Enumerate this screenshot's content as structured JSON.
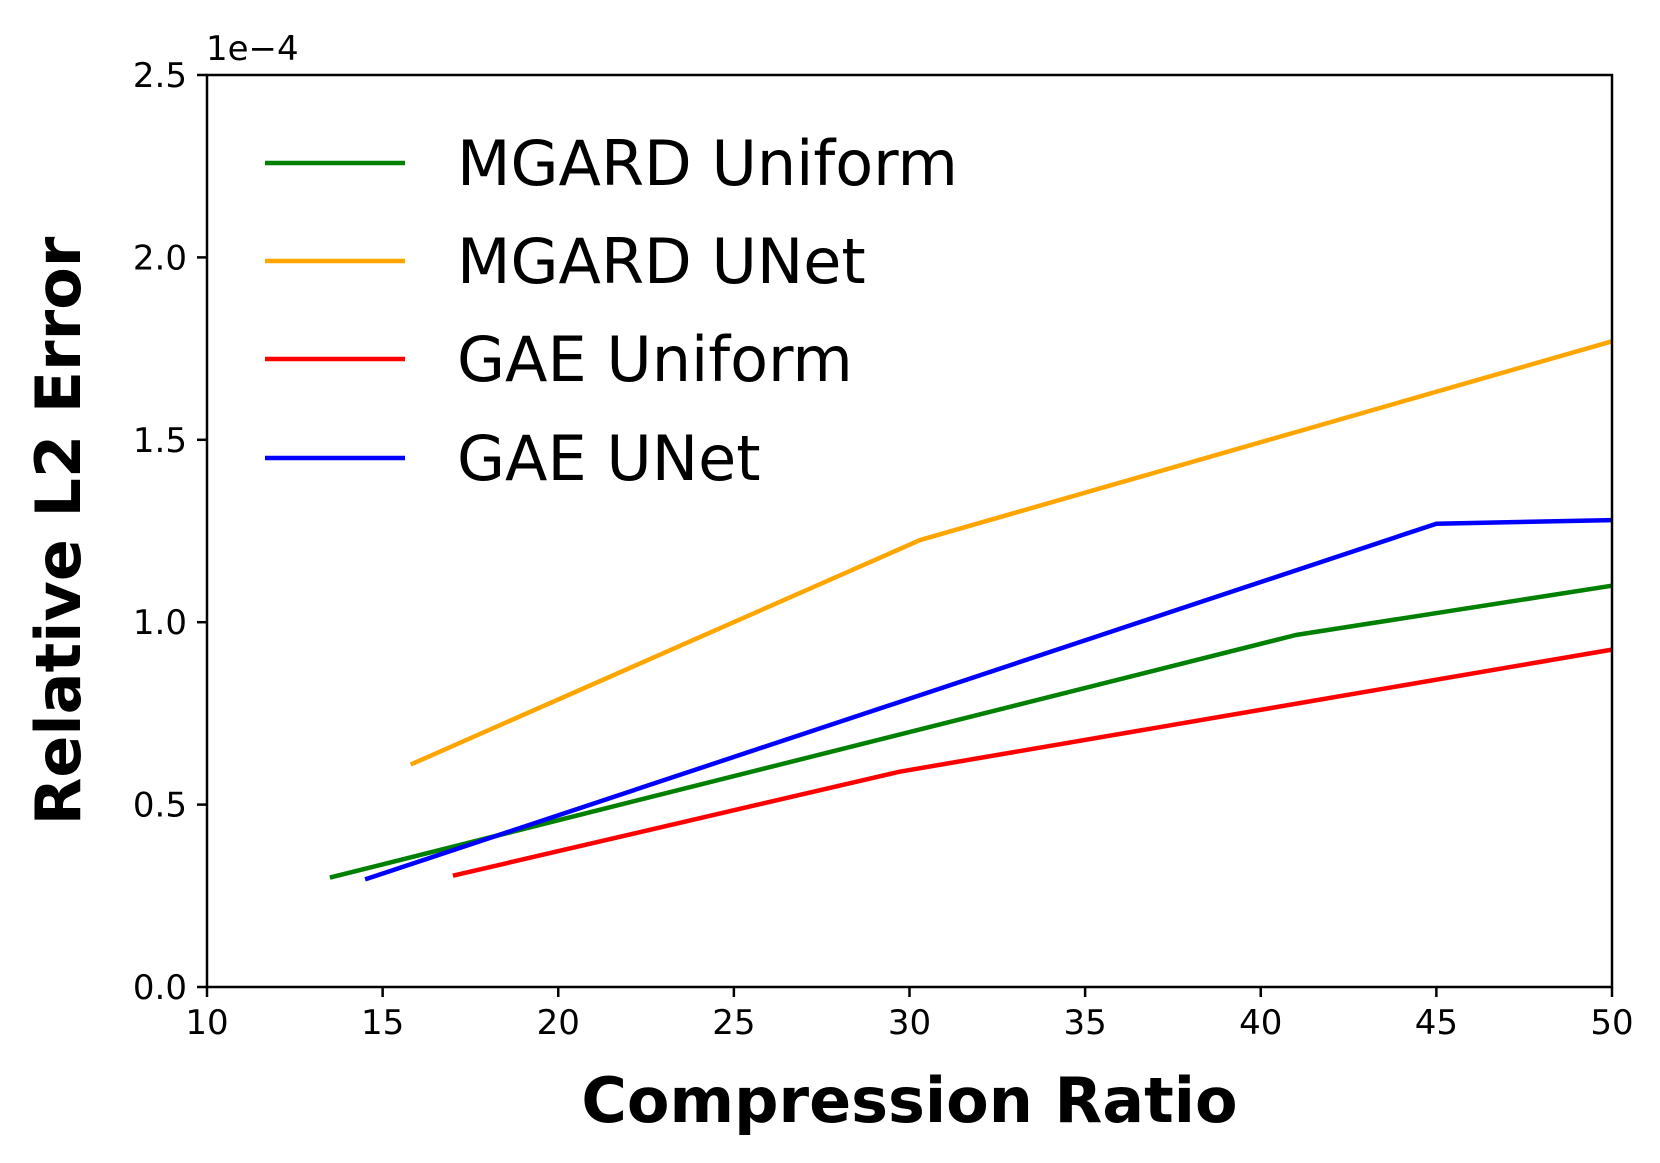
{
  "chart_data": {
    "type": "line",
    "title": "",
    "xlabel": "Compression Ratio",
    "ylabel": "Relative L2 Error",
    "xlim": [
      10,
      50
    ],
    "ylim": [
      0,
      2.5
    ],
    "y_offset_label": "1e−4",
    "xticks": [
      10,
      15,
      20,
      25,
      30,
      35,
      40,
      45,
      50
    ],
    "yticks": [
      0.0,
      0.5,
      1.0,
      1.5,
      2.0,
      2.5
    ],
    "xtick_labels": [
      "10",
      "15",
      "20",
      "25",
      "30",
      "35",
      "40",
      "45",
      "50"
    ],
    "ytick_labels": [
      "0.0",
      "0.5",
      "1.0",
      "1.5",
      "2.0",
      "2.5"
    ],
    "grid": false,
    "legend_position": "upper-left",
    "series": [
      {
        "name": "MGARD Uniform",
        "color": "#008000",
        "x": [
          13.5,
          41.0,
          50.0
        ],
        "y": [
          0.3,
          0.965,
          1.1
        ]
      },
      {
        "name": "MGARD UNet",
        "color": "#ffa500",
        "x": [
          15.8,
          30.3,
          50.0
        ],
        "y": [
          0.61,
          1.225,
          1.77
        ]
      },
      {
        "name": "GAE Uniform",
        "color": "#ff0000",
        "x": [
          17.0,
          29.7,
          50.0
        ],
        "y": [
          0.305,
          0.59,
          0.925
        ]
      },
      {
        "name": "GAE UNet",
        "color": "#0000ff",
        "x": [
          14.5,
          45.0,
          50.0
        ],
        "y": [
          0.295,
          1.27,
          1.28
        ]
      }
    ]
  }
}
